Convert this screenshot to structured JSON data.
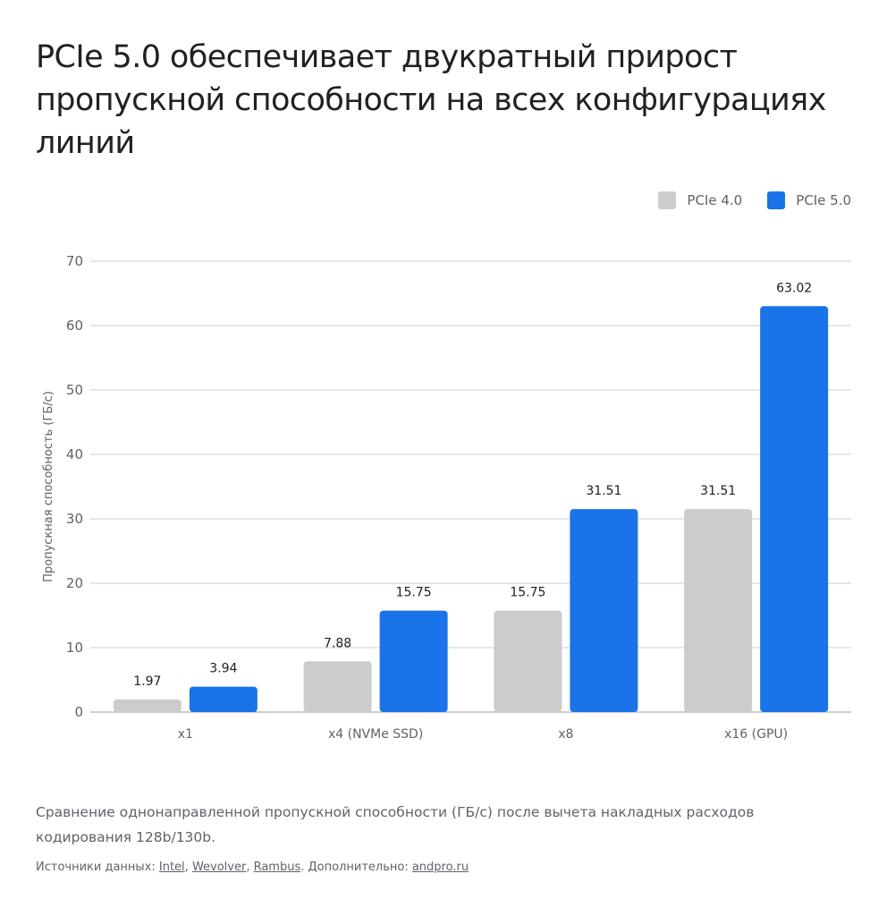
{
  "title": "PCIe 5.0 обеспечивает двукратный прирост пропускной способности на всех конфигурациях линий",
  "caption": "Сравнение однонаправленной пропускной способности (ГБ/с) после вычета накладных расходов кодирования 128b/130b.",
  "sources": {
    "prefix": "Источники данных: ",
    "links": [
      "Intel",
      "Wevolver",
      "Rambus"
    ],
    "more_prefix": ". Дополнительно: ",
    "more_link": "andpro.ru"
  },
  "colors": {
    "pcie4": "#cccccc",
    "pcie5": "#1a73e8",
    "grid": "#cfcfcf",
    "axis": "#9e9e9e",
    "text": "#5f6368",
    "label": "#202124"
  },
  "chart_data": {
    "type": "bar",
    "title": "PCIe 5.0 обеспечивает двукратный прирост пропускной способности на всех конфигурациях линий",
    "xlabel": "",
    "ylabel": "Пропускная способность (ГБ/с)",
    "ylim": [
      0,
      70
    ],
    "yticks": [
      0,
      10,
      20,
      30,
      40,
      50,
      60,
      70
    ],
    "grid": true,
    "legend_position": "top-right",
    "categories": [
      "x1",
      "x4 (NVMe SSD)",
      "x8",
      "x16 (GPU)"
    ],
    "series": [
      {
        "name": "PCIe 4.0",
        "values": [
          1.97,
          7.88,
          15.75,
          31.51
        ],
        "labels": [
          "1.97",
          "7.88",
          "15.75",
          "31.51"
        ]
      },
      {
        "name": "PCIe 5.0",
        "values": [
          3.94,
          15.75,
          31.51,
          63.02
        ],
        "labels": [
          "3.94",
          "15.75",
          "31.51",
          "63.02"
        ]
      }
    ]
  }
}
